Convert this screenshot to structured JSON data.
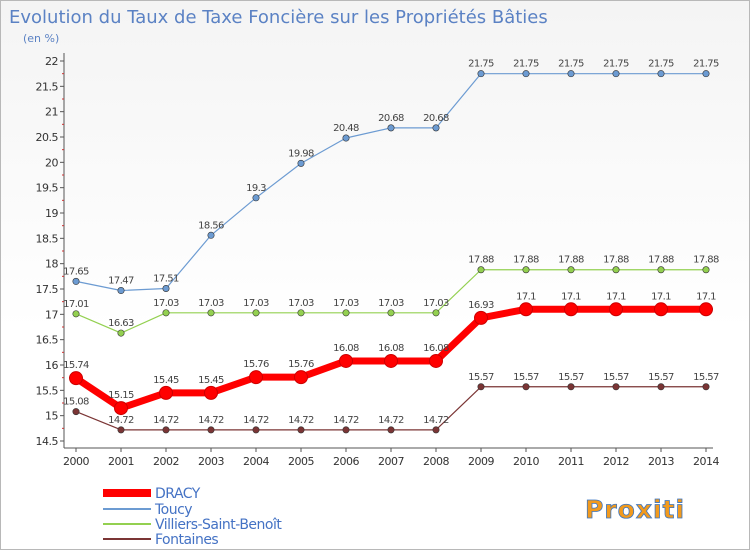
{
  "title": "Evolution du Taux de Taxe Foncière sur les Propriétés Bâties",
  "unit_label": "(en %)",
  "logo_text": "Proxiti",
  "colors": {
    "dracy": "#ff0000",
    "toucy": "#6c9bd2",
    "villiers": "#93d050",
    "fontaines": "#7b3535",
    "title": "#5b82c4",
    "legend_text": "#4472c4"
  },
  "chart_data": {
    "type": "line",
    "title": "Evolution du Taux de Taxe Foncière sur les Propriétés Bâties",
    "ylabel": "(en %)",
    "xlabel": "",
    "ylim": [
      14.5,
      22
    ],
    "y_ticks": [
      "14.5",
      "15",
      "15.5",
      "16",
      "16.5",
      "17",
      "17.5",
      "18",
      "18.5",
      "19",
      "19.5",
      "20",
      "20.5",
      "21",
      "21.5",
      "22"
    ],
    "grid": false,
    "legend_position": "bottom-left",
    "categories": [
      "2000",
      "2001",
      "2002",
      "2003",
      "2004",
      "2005",
      "2006",
      "2007",
      "2008",
      "2009",
      "2010",
      "2011",
      "2012",
      "2013",
      "2014"
    ],
    "series": [
      {
        "name": "DRACY",
        "color": "#ff0000",
        "values": [
          15.74,
          15.15,
          15.45,
          15.45,
          15.76,
          15.76,
          16.08,
          16.08,
          16.08,
          16.93,
          17.1,
          17.1,
          17.1,
          17.1,
          17.1
        ],
        "labels": [
          "15.74",
          "15.15",
          "15.45",
          "15.45",
          "15.76",
          "15.76",
          "16.08",
          "16.08",
          "16.08",
          "16.93",
          "17.1",
          "17.1",
          "17.1",
          "17.1",
          "17.1"
        ]
      },
      {
        "name": "Toucy",
        "color": "#6c9bd2",
        "values": [
          17.65,
          17.47,
          17.51,
          18.56,
          19.3,
          19.98,
          20.48,
          20.68,
          20.68,
          21.75,
          21.75,
          21.75,
          21.75,
          21.75,
          21.75
        ],
        "labels": [
          "17.65",
          "17.47",
          "17.51",
          "18.56",
          "19.3",
          "19.98",
          "20.48",
          "20.68",
          "20.68",
          "21.75",
          "21.75",
          "21.75",
          "21.75",
          "21.75",
          "21.75"
        ]
      },
      {
        "name": "Villiers-Saint-Benoît",
        "color": "#93d050",
        "values": [
          17.01,
          16.63,
          17.03,
          17.03,
          17.03,
          17.03,
          17.03,
          17.03,
          17.03,
          17.88,
          17.88,
          17.88,
          17.88,
          17.88,
          17.88
        ],
        "labels": [
          "17.01",
          "16.63",
          "17.03",
          "17.03",
          "17.03",
          "17.03",
          "17.03",
          "17.03",
          "17.03",
          "17.88",
          "17.88",
          "17.88",
          "17.88",
          "17.88",
          "17.88"
        ]
      },
      {
        "name": "Fontaines",
        "color": "#7b3535",
        "values": [
          15.08,
          14.72,
          14.72,
          14.72,
          14.72,
          14.72,
          14.72,
          14.72,
          14.72,
          15.57,
          15.57,
          15.57,
          15.57,
          15.57,
          15.57
        ],
        "labels": [
          "15.08",
          "14.72",
          "14.72",
          "14.72",
          "14.72",
          "14.72",
          "14.72",
          "14.72",
          "14.72",
          "15.57",
          "15.57",
          "15.57",
          "15.57",
          "15.57",
          "15.57"
        ]
      }
    ]
  }
}
